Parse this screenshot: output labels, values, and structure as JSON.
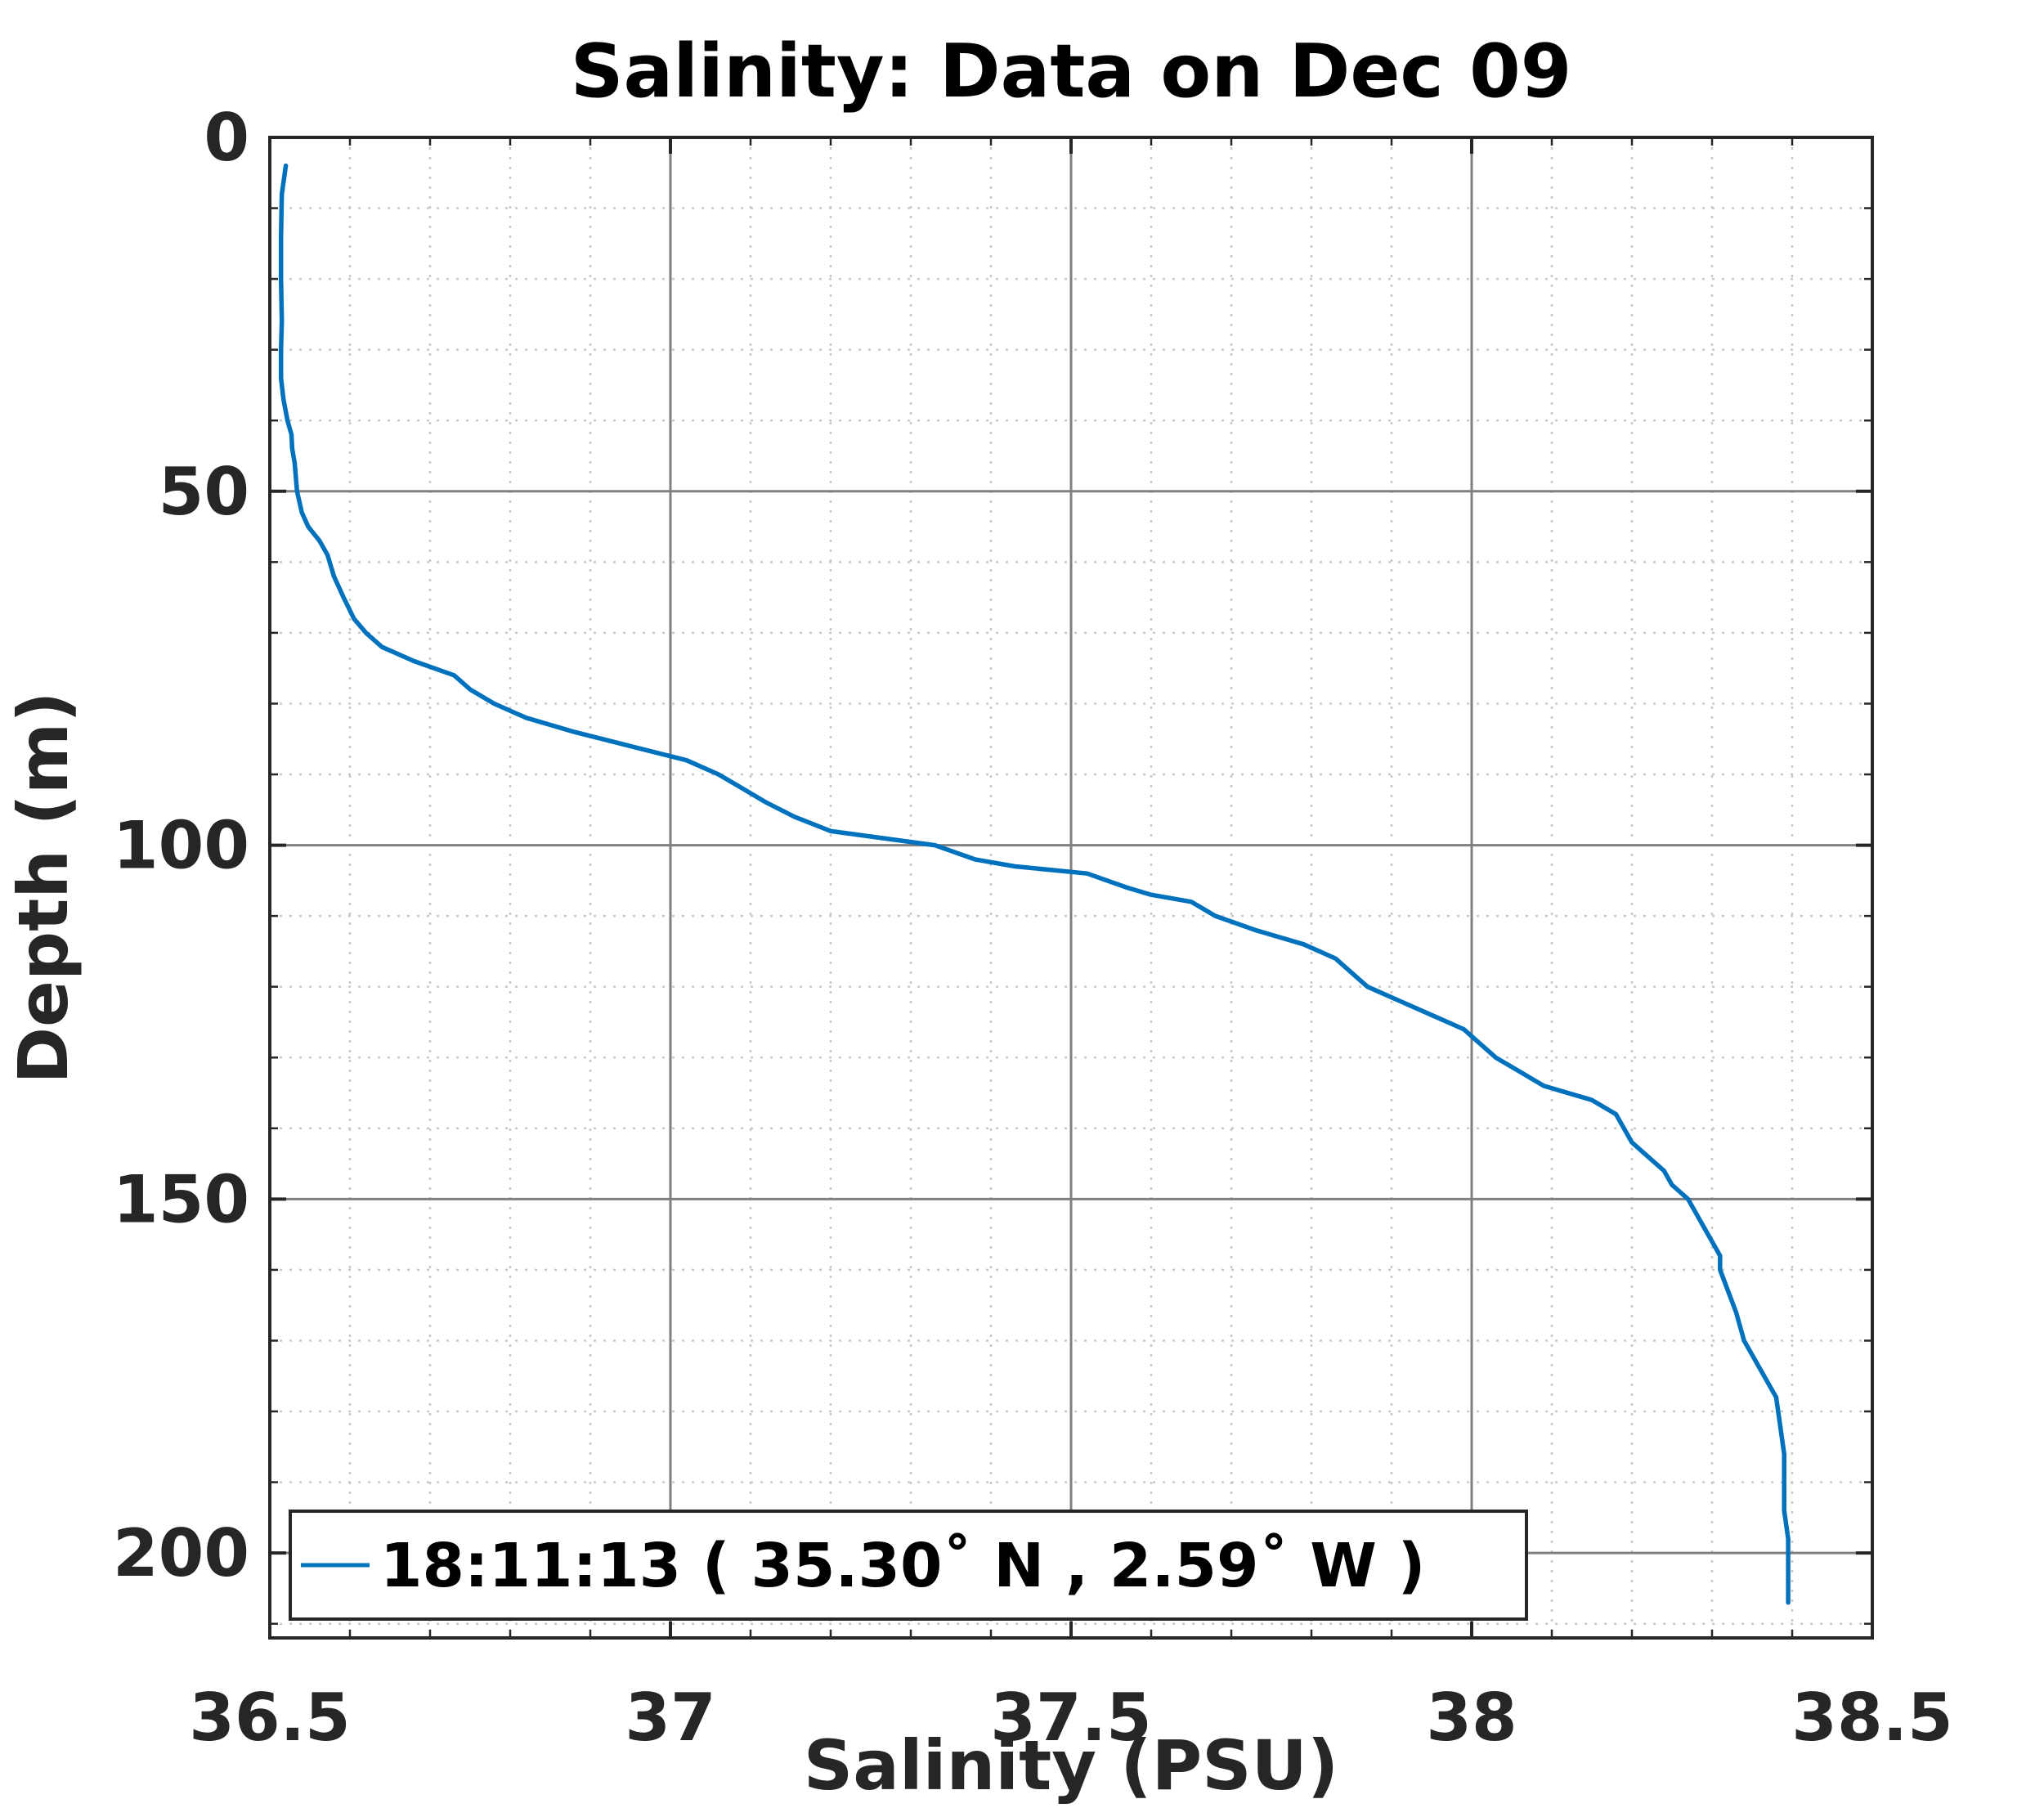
{
  "chart_data": {
    "type": "line",
    "title": "Salinity: Data on Dec 09",
    "xlabel": "Salinity (PSU)",
    "ylabel": "Depth (m)",
    "xlim": [
      36.5,
      38.5
    ],
    "ylim": [
      0,
      212
    ],
    "y_reversed": true,
    "x_ticks": [
      36.5,
      37,
      37.5,
      38,
      38.5
    ],
    "x_tick_labels": [
      "36.5",
      "37",
      "37.5",
      "38",
      "38.5"
    ],
    "y_ticks": [
      0,
      50,
      100,
      150,
      200
    ],
    "y_tick_labels": [
      "0",
      "50",
      "100",
      "150",
      "200"
    ],
    "grid": true,
    "minor_grid": true,
    "legend_position": "bottom-left",
    "colors": {
      "series": "#0072BD",
      "major_grid": "#808080",
      "minor_grid": "#c8c8c8",
      "axes": "#262626"
    },
    "series": [
      {
        "name": "18:11:13 ( 35.30˚ N , 2.59˚ W )",
        "x": [
          36.52,
          36.515,
          36.514,
          36.514,
          36.515,
          36.514,
          36.514,
          36.517,
          36.522,
          36.527,
          36.528,
          36.531,
          36.534,
          36.54,
          36.548,
          36.562,
          36.572,
          36.58,
          36.592,
          36.605,
          36.62,
          36.64,
          36.68,
          36.73,
          36.75,
          36.78,
          36.82,
          36.88,
          36.95,
          37.02,
          37.06,
          37.09,
          37.12,
          37.155,
          37.2,
          37.33,
          37.38,
          37.43,
          37.52,
          37.57,
          37.6,
          37.65,
          37.68,
          37.73,
          37.79,
          37.83,
          37.85,
          37.87,
          37.91,
          37.95,
          37.99,
          38.01,
          38.03,
          38.06,
          38.09,
          38.15,
          38.18,
          38.19,
          38.2,
          38.22,
          38.24,
          38.25,
          38.27,
          38.28,
          38.29,
          38.3,
          38.31,
          38.31,
          38.32,
          38.33,
          38.34,
          38.35,
          38.36,
          38.38,
          38.385,
          38.39,
          38.39,
          38.39,
          38.395,
          38.395,
          38.395
        ],
        "y": [
          4,
          8,
          14,
          20,
          26,
          30,
          34,
          37,
          40,
          42,
          44,
          46,
          50,
          53,
          55,
          57,
          59,
          62,
          65,
          68,
          70,
          72,
          74,
          76,
          78,
          80,
          82,
          84,
          86,
          88,
          90,
          92,
          94,
          96,
          98,
          100,
          102,
          103,
          104,
          106,
          107,
          108,
          110,
          112,
          114,
          116,
          118,
          120,
          122,
          124,
          126,
          128,
          130,
          132,
          134,
          136,
          138,
          140,
          142,
          144,
          146,
          148,
          150,
          152,
          154,
          156,
          158,
          160,
          163,
          166,
          170,
          172,
          174,
          178,
          182,
          186,
          190,
          194,
          198,
          203,
          207
        ]
      }
    ]
  }
}
